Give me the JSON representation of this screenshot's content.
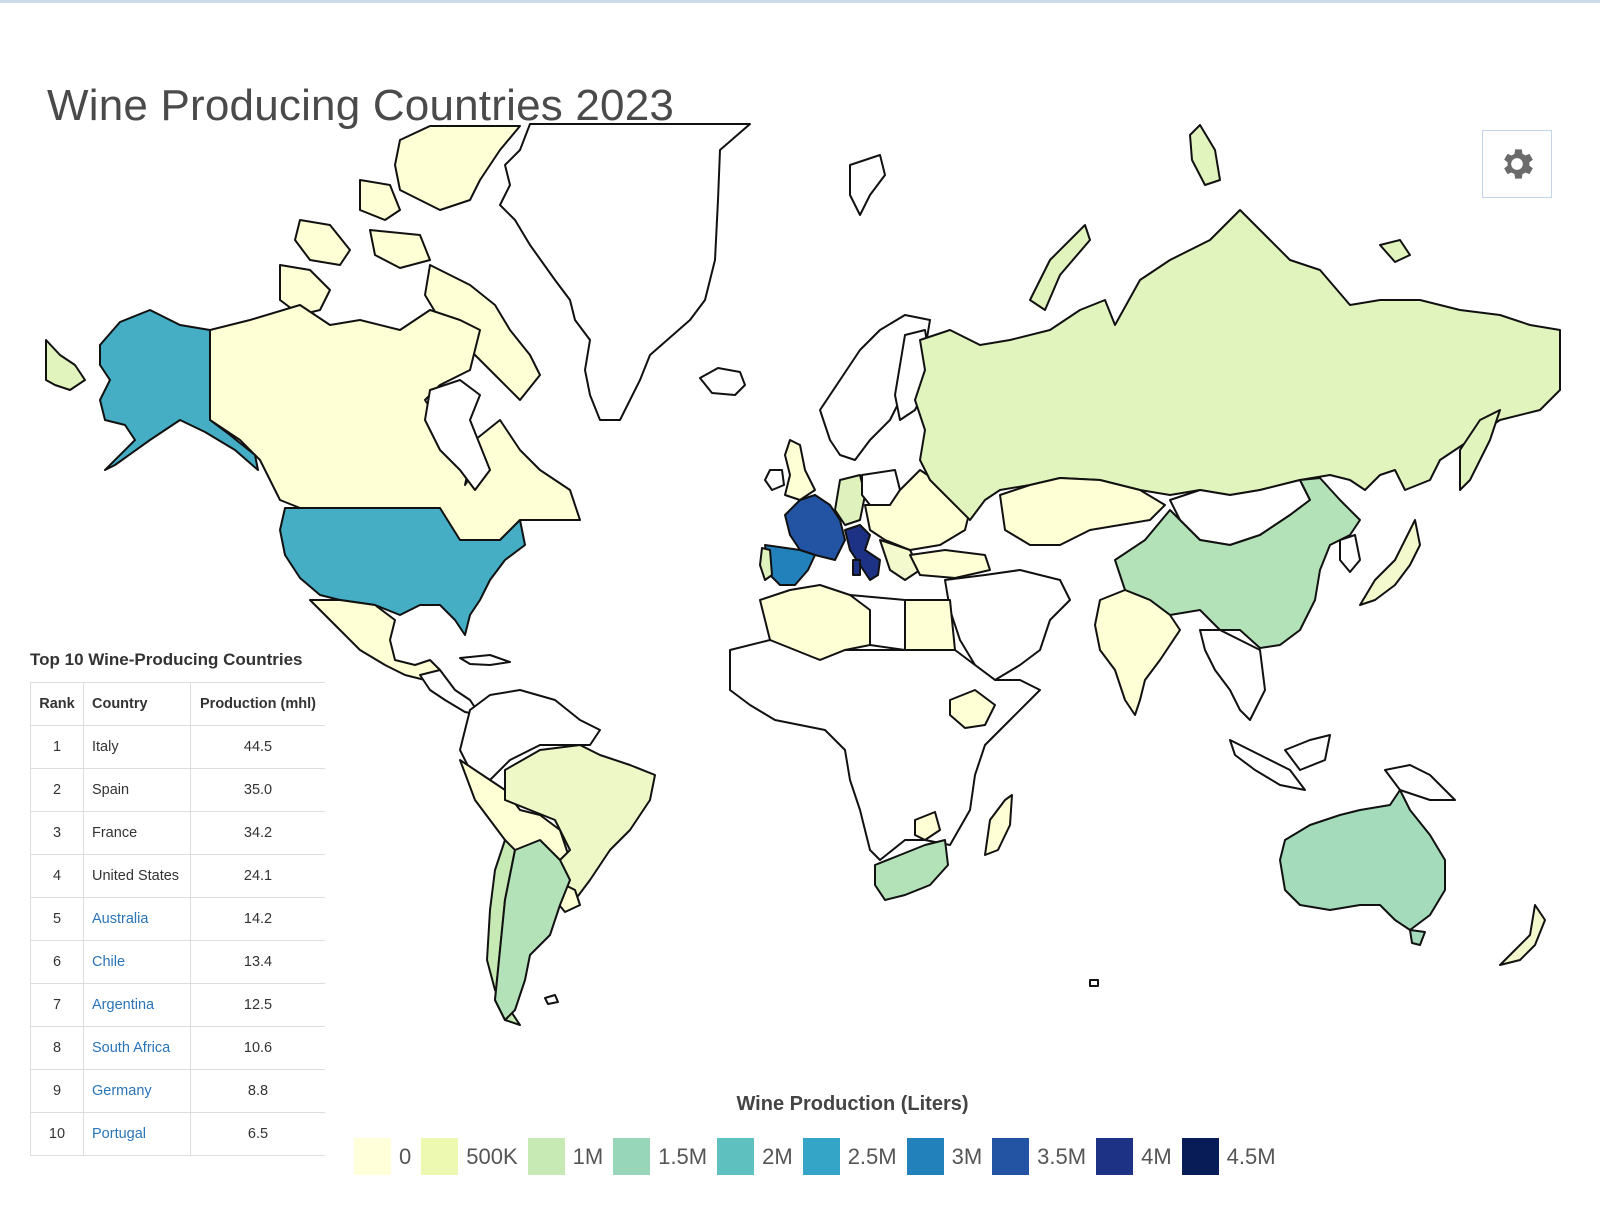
{
  "page": {
    "title": "Wine Producing Countries 2023"
  },
  "toolbar": {
    "settings_icon": "gear-icon"
  },
  "table": {
    "title": "Top 10 Wine-Producing Countries",
    "headers": [
      "Rank",
      "Country",
      "Production (mhl)"
    ],
    "rows": [
      {
        "rank": "1",
        "country": "Italy",
        "production": "44.5",
        "link": false
      },
      {
        "rank": "2",
        "country": "Spain",
        "production": "35.0",
        "link": false
      },
      {
        "rank": "3",
        "country": "France",
        "production": "34.2",
        "link": false
      },
      {
        "rank": "4",
        "country": "United States",
        "production": "24.1",
        "link": false
      },
      {
        "rank": "5",
        "country": "Australia",
        "production": "14.2",
        "link": true
      },
      {
        "rank": "6",
        "country": "Chile",
        "production": "13.4",
        "link": true
      },
      {
        "rank": "7",
        "country": "Argentina",
        "production": "12.5",
        "link": true
      },
      {
        "rank": "8",
        "country": "South Africa",
        "production": "10.6",
        "link": true
      },
      {
        "rank": "9",
        "country": "Germany",
        "production": "8.8",
        "link": true
      },
      {
        "rank": "10",
        "country": "Portugal",
        "production": "6.5",
        "link": true
      }
    ]
  },
  "legend": {
    "title": "Wine Production (Liters)",
    "items": [
      {
        "label": "0",
        "color": "#ffffd9"
      },
      {
        "label": "500K",
        "color": "#edf8b1"
      },
      {
        "label": "1M",
        "color": "#c7e9b4"
      },
      {
        "label": "1.5M",
        "color": "#97d6b9"
      },
      {
        "label": "2M",
        "color": "#5fc0c0"
      },
      {
        "label": "2.5M",
        "color": "#34a5c6"
      },
      {
        "label": "3M",
        "color": "#2281ba"
      },
      {
        "label": "3.5M",
        "color": "#2354a4"
      },
      {
        "label": "4M",
        "color": "#1d3285"
      },
      {
        "label": "4.5M",
        "color": "#081d58"
      }
    ]
  },
  "map": {
    "no_data_color": "#ffffff",
    "regions": [
      {
        "name": "Italy",
        "color": "#1d3285"
      },
      {
        "name": "France",
        "color": "#2354a4"
      },
      {
        "name": "Spain",
        "color": "#2281ba"
      },
      {
        "name": "United States",
        "color": "#45adc4"
      },
      {
        "name": "Australia",
        "color": "#a3dbbb"
      },
      {
        "name": "China",
        "color": "#b4e2b8"
      },
      {
        "name": "Argentina",
        "color": "#b4e2b8"
      },
      {
        "name": "South Africa",
        "color": "#b4e2b8"
      },
      {
        "name": "Chile",
        "color": "#c7e9b4"
      },
      {
        "name": "Germany",
        "color": "#dff2bd"
      },
      {
        "name": "Portugal",
        "color": "#dff2bd"
      },
      {
        "name": "Russia",
        "color": "#e2f4be"
      },
      {
        "name": "Brazil",
        "color": "#edf8c6"
      },
      {
        "name": "Canada",
        "color": "#ffffd6"
      },
      {
        "name": "Mexico",
        "color": "#ffffd6"
      },
      {
        "name": "India",
        "color": "#ffffd6"
      },
      {
        "name": "Kazakhstan",
        "color": "#ffffd6"
      },
      {
        "name": "Japan",
        "color": "#f3f9cc"
      },
      {
        "name": "New Zealand",
        "color": "#f3f9cc"
      },
      {
        "name": "Greenland",
        "color": "#ffffff"
      },
      {
        "name": "Mongolia",
        "color": "#ffffff"
      }
    ]
  },
  "chart_data": {
    "type": "table",
    "title": "Top 10 Wine-Producing Countries",
    "columns": [
      "Rank",
      "Country",
      "Production (mhl)"
    ],
    "categories": [
      "Italy",
      "Spain",
      "France",
      "United States",
      "Australia",
      "Chile",
      "Argentina",
      "South Africa",
      "Germany",
      "Portugal"
    ],
    "values": [
      44.5,
      35.0,
      34.2,
      24.1,
      14.2,
      13.4,
      12.5,
      10.6,
      8.8,
      6.5
    ],
    "legend": {
      "title": "Wine Production (Liters)",
      "bins": [
        "0",
        "500K",
        "1M",
        "1.5M",
        "2M",
        "2.5M",
        "3M",
        "3.5M",
        "4M",
        "4.5M"
      ]
    }
  }
}
